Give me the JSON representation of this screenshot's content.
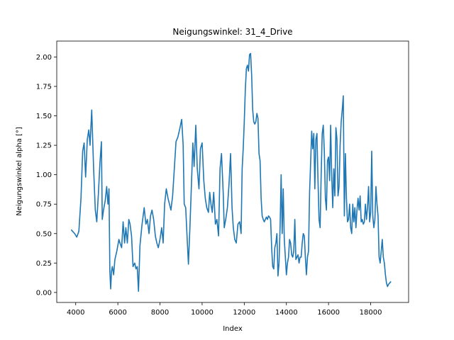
{
  "chart_data": {
    "type": "line",
    "title": "Neigungswinkel: 31_4_Drive",
    "xlabel": "Index",
    "ylabel": "Neigungswinkel alpha [°]",
    "xlim": [
      3100,
      19800
    ],
    "ylim": [
      -0.085,
      2.135
    ],
    "grid": false,
    "x_ticks": [
      4000,
      6000,
      8000,
      10000,
      12000,
      14000,
      16000,
      18000
    ],
    "x_tick_labels": [
      "4000",
      "6000",
      "8000",
      "10000",
      "12000",
      "14000",
      "16000",
      "18000"
    ],
    "y_ticks": [
      0.0,
      0.25,
      0.5,
      0.75,
      1.0,
      1.25,
      1.5,
      1.75,
      2.0
    ],
    "y_tick_labels": [
      "0.00",
      "0.25",
      "0.50",
      "0.75",
      "1.00",
      "1.25",
      "1.50",
      "1.75",
      "2.00"
    ],
    "series": [
      {
        "color": "#1f77b4",
        "points": [
          [
            3800,
            0.53
          ],
          [
            3950,
            0.5
          ],
          [
            4050,
            0.47
          ],
          [
            4150,
            0.52
          ],
          [
            4250,
            0.8
          ],
          [
            4330,
            1.2
          ],
          [
            4400,
            1.27
          ],
          [
            4470,
            0.98
          ],
          [
            4550,
            1.3
          ],
          [
            4620,
            1.38
          ],
          [
            4680,
            1.25
          ],
          [
            4760,
            1.55
          ],
          [
            4850,
            1.05
          ],
          [
            4930,
            0.7
          ],
          [
            5000,
            0.6
          ],
          [
            5080,
            0.85
          ],
          [
            5150,
            1.1
          ],
          [
            5220,
            1.28
          ],
          [
            5260,
            0.62
          ],
          [
            5320,
            0.7
          ],
          [
            5400,
            0.78
          ],
          [
            5470,
            0.9
          ],
          [
            5530,
            0.75
          ],
          [
            5580,
            0.88
          ],
          [
            5620,
            0.18
          ],
          [
            5660,
            0.03
          ],
          [
            5700,
            0.18
          ],
          [
            5740,
            0.22
          ],
          [
            5800,
            0.15
          ],
          [
            5860,
            0.28
          ],
          [
            5950,
            0.35
          ],
          [
            6050,
            0.45
          ],
          [
            6100,
            0.42
          ],
          [
            6180,
            0.38
          ],
          [
            6250,
            0.6
          ],
          [
            6320,
            0.42
          ],
          [
            6380,
            0.55
          ],
          [
            6450,
            0.42
          ],
          [
            6520,
            0.62
          ],
          [
            6580,
            0.58
          ],
          [
            6650,
            0.48
          ],
          [
            6720,
            0.22
          ],
          [
            6800,
            0.25
          ],
          [
            6860,
            0.2
          ],
          [
            6920,
            0.22
          ],
          [
            6980,
            0.01
          ],
          [
            7050,
            0.4
          ],
          [
            7150,
            0.58
          ],
          [
            7250,
            0.72
          ],
          [
            7330,
            0.58
          ],
          [
            7400,
            0.62
          ],
          [
            7480,
            0.5
          ],
          [
            7550,
            0.65
          ],
          [
            7620,
            0.7
          ],
          [
            7700,
            0.62
          ],
          [
            7780,
            0.48
          ],
          [
            7850,
            0.42
          ],
          [
            7920,
            0.38
          ],
          [
            8000,
            0.45
          ],
          [
            8080,
            0.55
          ],
          [
            8150,
            0.42
          ],
          [
            8220,
            0.75
          ],
          [
            8300,
            0.88
          ],
          [
            8380,
            0.8
          ],
          [
            8450,
            0.75
          ],
          [
            8520,
            0.7
          ],
          [
            8600,
            0.82
          ],
          [
            8680,
            1.05
          ],
          [
            8760,
            1.28
          ],
          [
            8850,
            1.32
          ],
          [
            8950,
            1.4
          ],
          [
            9030,
            1.47
          ],
          [
            9100,
            1.25
          ],
          [
            9150,
            0.75
          ],
          [
            9220,
            0.72
          ],
          [
            9300,
            0.42
          ],
          [
            9350,
            0.24
          ],
          [
            9420,
            0.55
          ],
          [
            9500,
            0.95
          ],
          [
            9560,
            1.27
          ],
          [
            9620,
            1.07
          ],
          [
            9700,
            1.42
          ],
          [
            9770,
            1.05
          ],
          [
            9850,
            0.88
          ],
          [
            9920,
            1.22
          ],
          [
            10000,
            1.27
          ],
          [
            10080,
            0.95
          ],
          [
            10150,
            0.8
          ],
          [
            10220,
            0.72
          ],
          [
            10300,
            0.68
          ],
          [
            10360,
            0.85
          ],
          [
            10420,
            0.75
          ],
          [
            10480,
            0.68
          ],
          [
            10550,
            0.85
          ],
          [
            10630,
            0.58
          ],
          [
            10700,
            0.62
          ],
          [
            10780,
            0.48
          ],
          [
            10850,
            1.05
          ],
          [
            10920,
            1.18
          ],
          [
            11000,
            0.85
          ],
          [
            11050,
            0.55
          ],
          [
            11120,
            0.62
          ],
          [
            11200,
            0.72
          ],
          [
            11280,
            0.93
          ],
          [
            11350,
            1.18
          ],
          [
            11420,
            0.72
          ],
          [
            11480,
            0.55
          ],
          [
            11550,
            0.45
          ],
          [
            11620,
            0.42
          ],
          [
            11700,
            0.58
          ],
          [
            11780,
            0.6
          ],
          [
            11850,
            0.5
          ],
          [
            11900,
            1.05
          ],
          [
            11950,
            1.22
          ],
          [
            12000,
            1.45
          ],
          [
            12050,
            1.72
          ],
          [
            12100,
            1.9
          ],
          [
            12150,
            1.93
          ],
          [
            12200,
            1.88
          ],
          [
            12250,
            2.02
          ],
          [
            12300,
            2.03
          ],
          [
            12350,
            1.85
          ],
          [
            12400,
            1.55
          ],
          [
            12450,
            1.45
          ],
          [
            12500,
            1.43
          ],
          [
            12550,
            1.45
          ],
          [
            12600,
            1.52
          ],
          [
            12650,
            1.48
          ],
          [
            12700,
            1.18
          ],
          [
            12750,
            1.12
          ],
          [
            12800,
            0.8
          ],
          [
            12850,
            0.65
          ],
          [
            12900,
            0.62
          ],
          [
            12950,
            0.6
          ],
          [
            13000,
            0.62
          ],
          [
            13050,
            0.64
          ],
          [
            13100,
            0.62
          ],
          [
            13150,
            0.65
          ],
          [
            13200,
            0.64
          ],
          [
            13250,
            0.62
          ],
          [
            13300,
            0.38
          ],
          [
            13350,
            0.22
          ],
          [
            13400,
            0.2
          ],
          [
            13450,
            0.38
          ],
          [
            13500,
            0.42
          ],
          [
            13550,
            0.5
          ],
          [
            13600,
            0.14
          ],
          [
            13650,
            0.25
          ],
          [
            13700,
            0.55
          ],
          [
            13750,
            1.0
          ],
          [
            13800,
            0.5
          ],
          [
            13850,
            0.88
          ],
          [
            13900,
            0.45
          ],
          [
            13950,
            0.3
          ],
          [
            14000,
            0.15
          ],
          [
            14050,
            0.25
          ],
          [
            14100,
            0.3
          ],
          [
            14150,
            0.45
          ],
          [
            14200,
            0.42
          ],
          [
            14250,
            0.32
          ],
          [
            14300,
            0.3
          ],
          [
            14350,
            0.35
          ],
          [
            14400,
            0.62
          ],
          [
            14450,
            0.28
          ],
          [
            14500,
            0.3
          ],
          [
            14550,
            0.32
          ],
          [
            14600,
            0.25
          ],
          [
            14650,
            0.3
          ],
          [
            14700,
            0.3
          ],
          [
            14750,
            0.42
          ],
          [
            14800,
            0.5
          ],
          [
            14850,
            0.48
          ],
          [
            14900,
            0.3
          ],
          [
            14950,
            0.15
          ],
          [
            15000,
            0.3
          ],
          [
            15050,
            0.35
          ],
          [
            15100,
            0.85
          ],
          [
            15150,
            1.1
          ],
          [
            15200,
            1.37
          ],
          [
            15250,
            1.22
          ],
          [
            15300,
            1.35
          ],
          [
            15350,
            0.88
          ],
          [
            15400,
            1.3
          ],
          [
            15450,
            1.35
          ],
          [
            15500,
            0.95
          ],
          [
            15550,
            0.62
          ],
          [
            15600,
            0.55
          ],
          [
            15650,
            1.0
          ],
          [
            15700,
            1.35
          ],
          [
            15750,
            1.42
          ],
          [
            15800,
            1.2
          ],
          [
            15850,
            0.8
          ],
          [
            15900,
            0.7
          ],
          [
            15950,
            1.12
          ],
          [
            16000,
            1.15
          ],
          [
            16050,
            0.95
          ],
          [
            16100,
            1.42
          ],
          [
            16150,
            1.0
          ],
          [
            16200,
            0.72
          ],
          [
            16250,
            1.05
          ],
          [
            16300,
            0.82
          ],
          [
            16350,
            1.4
          ],
          [
            16400,
            1.3
          ],
          [
            16450,
            0.82
          ],
          [
            16500,
            0.9
          ],
          [
            16550,
            1.25
          ],
          [
            16600,
            1.45
          ],
          [
            16650,
            1.55
          ],
          [
            16700,
            1.67
          ],
          [
            16750,
            0.65
          ],
          [
            16800,
            1.18
          ],
          [
            16850,
            0.8
          ],
          [
            16900,
            0.6
          ],
          [
            16950,
            0.62
          ],
          [
            17000,
            0.75
          ],
          [
            17050,
            0.55
          ],
          [
            17100,
            0.5
          ],
          [
            17150,
            0.75
          ],
          [
            17200,
            0.6
          ],
          [
            17250,
            0.72
          ],
          [
            17300,
            0.55
          ],
          [
            17350,
            0.7
          ],
          [
            17400,
            0.8
          ],
          [
            17450,
            0.7
          ],
          [
            17500,
            0.82
          ],
          [
            17550,
            0.6
          ],
          [
            17600,
            0.62
          ],
          [
            17650,
            0.58
          ],
          [
            17700,
            0.6
          ],
          [
            17750,
            0.75
          ],
          [
            17800,
            0.62
          ],
          [
            17850,
            0.72
          ],
          [
            17900,
            0.9
          ],
          [
            17950,
            0.6
          ],
          [
            18000,
            0.68
          ],
          [
            18050,
            1.2
          ],
          [
            18100,
            0.65
          ],
          [
            18150,
            0.55
          ],
          [
            18200,
            0.62
          ],
          [
            18250,
            0.9
          ],
          [
            18300,
            0.75
          ],
          [
            18350,
            0.65
          ],
          [
            18400,
            0.3
          ],
          [
            18450,
            0.25
          ],
          [
            18500,
            0.35
          ],
          [
            18550,
            0.45
          ],
          [
            18600,
            0.3
          ],
          [
            18650,
            0.25
          ],
          [
            18700,
            0.15
          ],
          [
            18750,
            0.08
          ],
          [
            18800,
            0.05
          ],
          [
            18850,
            0.07
          ],
          [
            18900,
            0.08
          ],
          [
            18950,
            0.09
          ]
        ]
      }
    ]
  }
}
